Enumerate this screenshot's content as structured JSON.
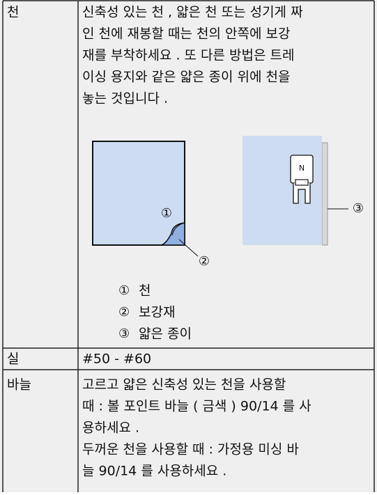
{
  "table": {
    "rows": [
      {
        "label": "천",
        "lines": [
          "신축성 있는 천 , 얇은 천 또는 성기게 짜",
          "인 천에 재봉할 때는 천의 안쪽에 보강",
          "재를 부착하세요 . 또 다른 방법은 트레",
          "이싱 용지와 같은 얇은 종이 위에 천을",
          "놓는 것입니다 ."
        ],
        "figure": {
          "callouts": [
            "①",
            "②",
            "③"
          ],
          "foot_mark": "N"
        },
        "legend": [
          {
            "marker": "①",
            "text": "천"
          },
          {
            "marker": "②",
            "text": "보강재"
          },
          {
            "marker": "③",
            "text": "얇은 종이"
          }
        ]
      },
      {
        "label": "실",
        "lines": [
          "#50 - #60"
        ]
      },
      {
        "label": "바늘",
        "lines": [
          "고르고 얇은 신축성 있는 천을 사용할",
          "때 : 볼 포인트 바늘 ( 금색 ) 90/14 를 사",
          "용하세요 .",
          "두꺼운 천을 사용할 때 : 가정용 미싱 바",
          "늘 90/14 를 사용하세요 ."
        ]
      }
    ]
  }
}
